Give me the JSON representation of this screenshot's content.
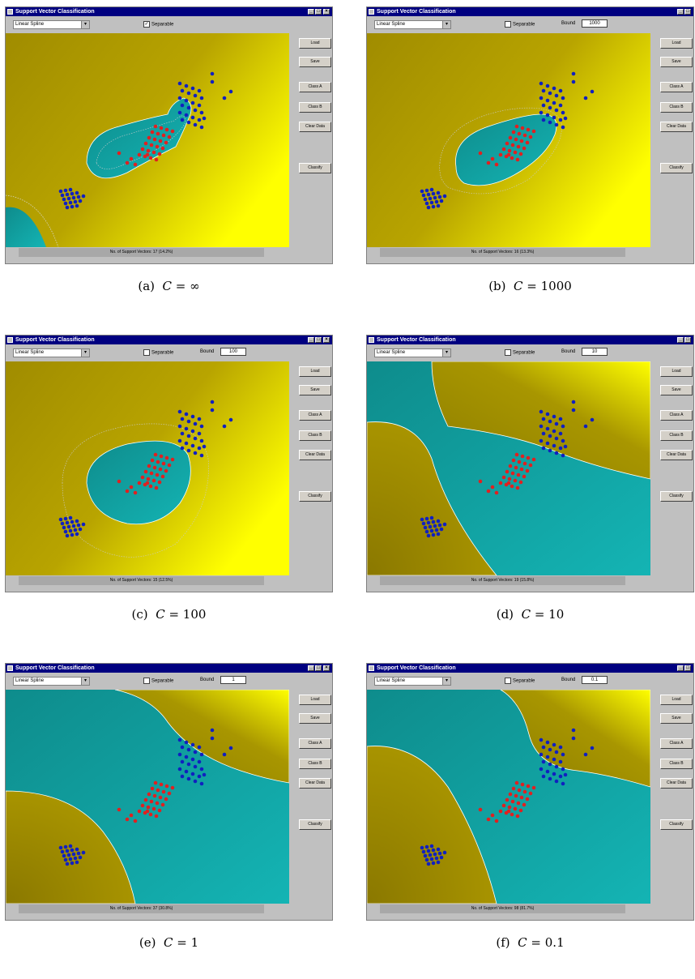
{
  "panels": [
    {
      "title": "Support Vector Classification",
      "kernel": "Linear Spline",
      "separable_label": "Separable",
      "separable_checked": true,
      "bound_label": "",
      "bound_value": "",
      "buttons": [
        "Load",
        "Save",
        "Class A",
        "Class B",
        "Clear Data",
        "Classify"
      ],
      "status": "No. of Support Vectors: 17 (14.2%)",
      "caption_label": "(a)",
      "caption_c": "C",
      "caption_rest": " = ∞"
    },
    {
      "title": "Support Vector Classification",
      "kernel": "Linear Spline",
      "separable_label": "Separable",
      "separable_checked": false,
      "bound_label": "Bound",
      "bound_value": "1000",
      "buttons": [
        "Load",
        "Save",
        "Class A",
        "Class B",
        "Clear Data",
        "Classify"
      ],
      "status": "No. of Support Vectors: 16 (13.3%)",
      "caption_label": "(b)",
      "caption_c": "C",
      "caption_rest": " = 1000"
    },
    {
      "title": "Support Vector Classification",
      "kernel": "Linear Spline",
      "separable_label": "Separable",
      "separable_checked": false,
      "bound_label": "Bound",
      "bound_value": "100",
      "buttons": [
        "Load",
        "Save",
        "Class A",
        "Class B",
        "Clear Data",
        "Classify"
      ],
      "status": "No. of Support Vectors: 15 (12.5%)",
      "caption_label": "(c)",
      "caption_c": "C",
      "caption_rest": " = 100"
    },
    {
      "title": "Support Vector Classification",
      "kernel": "Linear Spline",
      "separable_label": "Separable",
      "separable_checked": false,
      "bound_label": "Bound",
      "bound_value": "10",
      "buttons": [
        "Load",
        "Save",
        "Class A",
        "Class B",
        "Clear Data",
        "Classify"
      ],
      "status": "No. of Support Vectors: 19 (15.8%)",
      "caption_label": "(d)",
      "caption_c": "C",
      "caption_rest": " = 10"
    },
    {
      "title": "Support Vector Classification",
      "kernel": "Linear Spline",
      "separable_label": "Separable",
      "separable_checked": false,
      "bound_label": "Bound",
      "bound_value": "1",
      "buttons": [
        "Load",
        "Save",
        "Class A",
        "Class B",
        "Clear Data",
        "Classify"
      ],
      "status": "No. of Support Vectors: 37 (30.8%)",
      "caption_label": "(e)",
      "caption_c": "C",
      "caption_rest": " = 1"
    },
    {
      "title": "Support Vector Classification",
      "kernel": "Linear Spline",
      "separable_label": "Separable",
      "separable_checked": false,
      "bound_label": "Bound",
      "bound_value": "0.1",
      "buttons": [
        "Load",
        "Save",
        "Class A",
        "Class B",
        "Clear Data",
        "Classify"
      ],
      "status": "No. of Support Vectors: 98 (81.7%)",
      "caption_label": "(f)",
      "caption_c": "C",
      "caption_rest": " = 0.1"
    }
  ],
  "colors": {
    "class_a": "#e02020",
    "class_b": "#1020c0",
    "region_yellow": "#ffff00",
    "region_olive": "#9a8a00",
    "region_teal": "#109898",
    "titlebar": "#000080",
    "window": "#c0c0c0"
  },
  "icons": {
    "dropdown": "chevron-down-icon",
    "window_minimize": "minimize-icon",
    "window_maximize": "maximize-icon",
    "window_close": "close-icon",
    "app": "app-icon"
  }
}
